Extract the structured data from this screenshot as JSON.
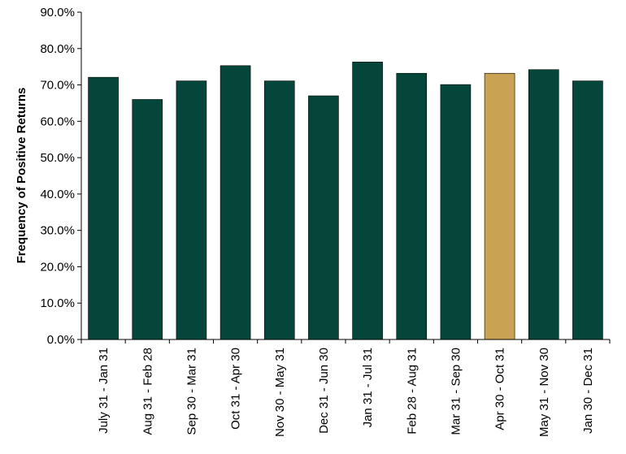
{
  "chart_data": {
    "type": "bar",
    "title": "",
    "xlabel": "",
    "ylabel": "Frequency of Positive Returns",
    "ylim": [
      0,
      90
    ],
    "ytick_step": 10,
    "ytick_format": "percent_1dp",
    "grid": false,
    "legend": "none",
    "categories": [
      "July 31 - Jan 31",
      "Aug 31 - Feb 28",
      "Sep 30 - Mar 31",
      "Oct 31 - Apr 30",
      "Nov 30 - May 31",
      "Dec 31 - Jun 30",
      "Jan 31 - Jul 31",
      "Feb 28 - Aug 31",
      "Mar 31 - Sep 30",
      "Apr 30 - Oct 31",
      "May 31 - Nov 30",
      "Jan 30 - Dec 31"
    ],
    "values": [
      72.1,
      66.0,
      71.1,
      75.3,
      71.1,
      67.0,
      76.3,
      73.2,
      70.1,
      73.2,
      74.2,
      71.1
    ],
    "colors": {
      "default": "#04473a",
      "highlight": "#c9a254",
      "axis": "#000000"
    },
    "highlight_index": 9
  }
}
